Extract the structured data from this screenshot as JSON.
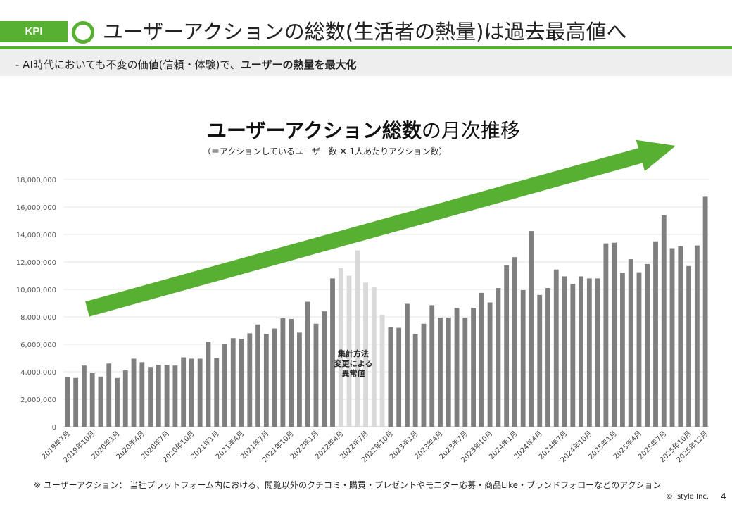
{
  "header": {
    "tag": "KPI",
    "title": "ユーザーアクションの総数(生活者の熱量)は過去最高値へ",
    "accent_color": "#57b031"
  },
  "subheader": {
    "prefix": "-  AI時代においても不変の価値(信頼・体験)で、",
    "bold": "ユーザーの熱量を最大化"
  },
  "chart_title": {
    "bold": "ユーザーアクション総数",
    "rest": "の月次推移"
  },
  "chart_subtitle": "（＝アクションしているユーザー数 ✕ 1人あたりアクション数）",
  "anomaly_label": [
    "集計方法",
    "変更による",
    "異常値"
  ],
  "footnote": {
    "prefix": "※ ユーザーアクション： 当社プラットフォーム内における、閲覧以外の",
    "items": [
      "クチコミ",
      "購買",
      "プレゼントやモニター応募",
      "商品Like",
      "ブランドフォロー"
    ],
    "suffix": "などのアクション"
  },
  "copyright": "© istyle Inc.",
  "page_number": "4",
  "chart_data": {
    "type": "bar",
    "title": "ユーザーアクション総数の月次推移",
    "ylim": [
      0,
      18000000
    ],
    "yticks": [
      0,
      2000000,
      4000000,
      6000000,
      8000000,
      10000000,
      12000000,
      14000000,
      16000000,
      18000000
    ],
    "ytick_labels": [
      "0",
      "2,000,000",
      "4,000,000",
      "6,000,000",
      "8,000,000",
      "10,000,000",
      "12,000,000",
      "14,000,000",
      "16,000,000",
      "18,000,000"
    ],
    "start_year": 2019,
    "start_month": 7,
    "xtick_labels": [
      "2019年7月",
      "2019年10月",
      "2020年1月",
      "2020年4月",
      "2020年7月",
      "2020年10月",
      "2021年1月",
      "2021年4月",
      "2021年7月",
      "2021年10月",
      "2022年1月",
      "2022年4月",
      "2022年7月",
      "2022年10月",
      "2023年1月",
      "2023年4月",
      "2023年7月",
      "2023年10月",
      "2024年1月",
      "2024年4月",
      "2024年7月",
      "2024年10月",
      "2025年1月",
      "2025年4月",
      "2025年7月",
      "2025年10月",
      "2025年12月"
    ],
    "values": [
      3600000,
      3550000,
      4450000,
      3900000,
      3650000,
      4600000,
      3550000,
      4100000,
      4950000,
      4700000,
      4350000,
      4500000,
      4500000,
      4450000,
      5050000,
      4950000,
      4950000,
      6200000,
      5000000,
      6050000,
      6450000,
      6400000,
      6800000,
      7450000,
      6750000,
      7150000,
      7900000,
      7850000,
      6850000,
      9100000,
      7500000,
      8400000,
      10800000,
      11550000,
      11000000,
      12850000,
      10500000,
      10150000,
      8150000,
      7250000,
      7200000,
      8950000,
      6750000,
      7500000,
      8850000,
      7950000,
      7950000,
      8650000,
      7950000,
      8650000,
      9750000,
      9050000,
      10100000,
      11750000,
      12350000,
      9950000,
      14250000,
      9600000,
      10100000,
      11450000,
      10950000,
      10400000,
      10950000,
      10800000,
      10800000,
      13350000,
      13400000,
      11200000,
      12200000,
      11250000,
      11850000,
      13500000,
      15400000,
      13000000,
      13150000,
      11700000,
      13200000,
      16750000
    ],
    "anomaly_index_range": [
      33,
      38
    ],
    "colors": {
      "normal": "#7f7f7f",
      "anomaly": "#d9d9d9",
      "arrow": "#57b031",
      "grid": "#e6e6e6"
    }
  }
}
